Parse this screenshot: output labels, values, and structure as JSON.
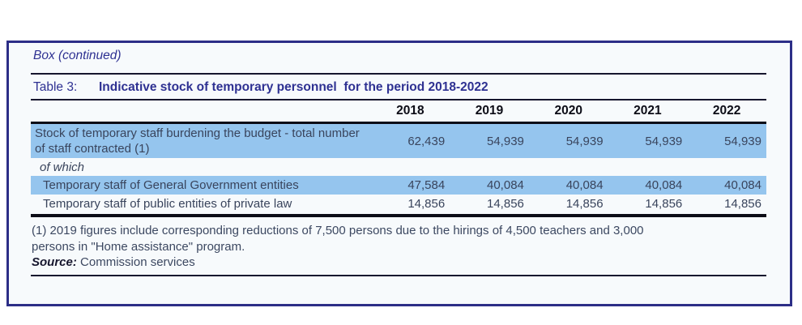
{
  "colors": {
    "accent_navy": "#2e3192",
    "box_border_navy": "#2c2e87",
    "row_highlight_blue": "#95c5ee",
    "rule_dark": "#16162e"
  },
  "box": {
    "continued_label": "Box (continued)"
  },
  "table": {
    "label": "Table 3:",
    "title": "Indicative stock of temporary personnel  for the period 2018-2022",
    "years": [
      "2018",
      "2019",
      "2020",
      "2021",
      "2022"
    ],
    "rows": [
      {
        "label": "Stock of temporary staff burdening the budget - total number of staff contracted (1)",
        "values": [
          "62,439",
          "54,939",
          "54,939",
          "54,939",
          "54,939"
        ]
      },
      {
        "label": "of which",
        "values": []
      },
      {
        "label": "Temporary staff of General Government entities",
        "values": [
          "47,584",
          "40,084",
          "40,084",
          "40,084",
          "40,084"
        ]
      },
      {
        "label": "Temporary staff of public entities of private law",
        "values": [
          "14,856",
          "14,856",
          "14,856",
          "14,856",
          "14,856"
        ]
      }
    ]
  },
  "footnote": {
    "lines": [
      "(1) 2019 figures include corresponding reductions of 7,500 persons due to the hirings of 4,500 teachers and 3,000",
      "persons in \"Home assistance\" program."
    ],
    "source_label": "Source:",
    "source_text": " Commission services"
  }
}
